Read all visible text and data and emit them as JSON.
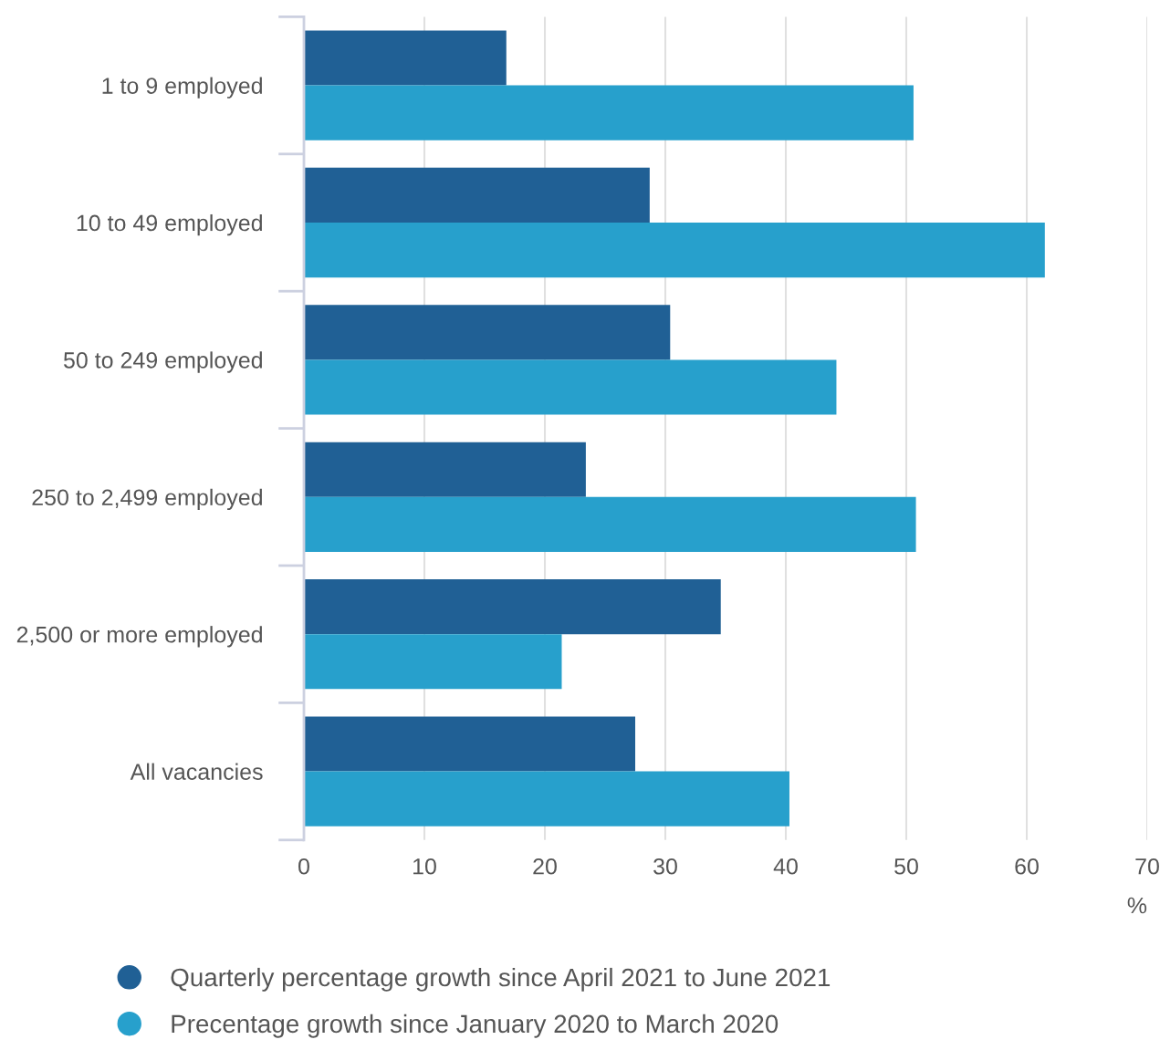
{
  "chart_data": {
    "type": "bar",
    "orientation": "horizontal",
    "categories": [
      "1 to 9 employed",
      "10 to 49 employed",
      "50 to 249 employed",
      "250 to 2,499 employed",
      "2,500 or more employed",
      "All vacancies"
    ],
    "series": [
      {
        "name": "Quarterly percentage growth since April 2021 to June 2021",
        "color": "#206095",
        "values": [
          16.8,
          28.7,
          30.4,
          23.4,
          34.6,
          27.5
        ]
      },
      {
        "name": "Precentage growth since January 2020 to March 2020",
        "color": "#27a0cc",
        "values": [
          50.6,
          61.5,
          44.2,
          50.8,
          21.4,
          40.3
        ]
      }
    ],
    "xlim": [
      0,
      70
    ],
    "xticks": [
      0,
      10,
      20,
      30,
      40,
      50,
      60,
      70
    ],
    "xlabel": "%",
    "grid": "x",
    "legend": "bottom"
  }
}
